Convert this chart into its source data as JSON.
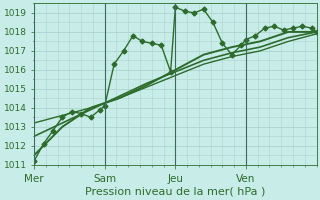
{
  "title": "",
  "xlabel": "Pression niveau de la mer( hPa )",
  "bg_color": "#c8ede8",
  "grid_color": "#aad4cc",
  "line_color": "#2d6b2d",
  "ylim": [
    1011,
    1019.5
  ],
  "yticks": [
    1011,
    1012,
    1013,
    1014,
    1015,
    1016,
    1017,
    1018,
    1019
  ],
  "yminor_interval": 0.5,
  "day_labels": [
    "Mer",
    "Sam",
    "Jeu",
    "Ven"
  ],
  "day_positions": [
    0,
    30,
    60,
    90
  ],
  "xlim": [
    0,
    120
  ],
  "vline_positions": [
    0,
    30,
    60,
    90
  ],
  "vline_color": "#3a6b5a",
  "xlabel_fontsize": 8,
  "tick_fontsize": 6.5,
  "label_fontsize": 7.5,
  "lines": [
    {
      "x": [
        0,
        4,
        8,
        12,
        16,
        20,
        24,
        28,
        30,
        34,
        38,
        42,
        46,
        50,
        54,
        58,
        60,
        64,
        68,
        72,
        76,
        80,
        84,
        88,
        90,
        94,
        98,
        102,
        106,
        110,
        114,
        118,
        120
      ],
      "y": [
        1011.2,
        1012.1,
        1012.8,
        1013.5,
        1013.8,
        1013.7,
        1013.5,
        1013.9,
        1014.1,
        1016.3,
        1017.0,
        1017.8,
        1017.5,
        1017.4,
        1017.3,
        1015.9,
        1019.3,
        1019.1,
        1019.0,
        1019.2,
        1018.5,
        1017.4,
        1016.8,
        1017.3,
        1017.6,
        1017.8,
        1018.2,
        1018.3,
        1018.1,
        1018.2,
        1018.3,
        1018.2,
        1018.0
      ],
      "marker": "D",
      "markersize": 2.5,
      "linewidth": 1.0,
      "linestyle": "-"
    },
    {
      "x": [
        0,
        12,
        24,
        36,
        48,
        60,
        72,
        84,
        96,
        108,
        120
      ],
      "y": [
        1011.5,
        1013.0,
        1014.0,
        1014.5,
        1015.2,
        1016.0,
        1016.8,
        1017.2,
        1017.5,
        1018.0,
        1018.0
      ],
      "marker": null,
      "linewidth": 1.4,
      "linestyle": "-"
    },
    {
      "x": [
        0,
        12,
        24,
        36,
        48,
        60,
        72,
        84,
        96,
        108,
        120
      ],
      "y": [
        1012.5,
        1013.2,
        1013.9,
        1014.6,
        1015.3,
        1015.9,
        1016.5,
        1016.9,
        1017.2,
        1017.7,
        1018.0
      ],
      "marker": null,
      "linewidth": 1.2,
      "linestyle": "-"
    },
    {
      "x": [
        0,
        12,
        24,
        36,
        48,
        60,
        72,
        84,
        96,
        108,
        120
      ],
      "y": [
        1013.2,
        1013.6,
        1014.0,
        1014.5,
        1015.1,
        1015.7,
        1016.3,
        1016.7,
        1017.0,
        1017.5,
        1017.9
      ],
      "marker": null,
      "linewidth": 1.0,
      "linestyle": "-"
    }
  ]
}
